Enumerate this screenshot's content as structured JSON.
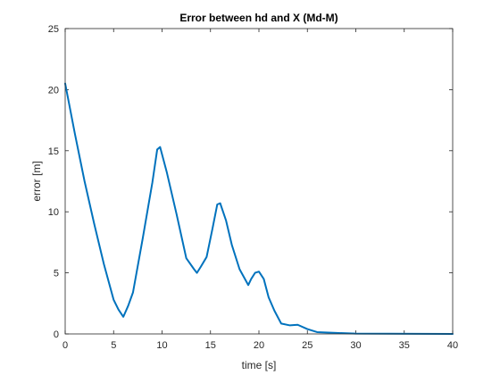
{
  "chart_data": {
    "type": "line",
    "title": "Error between hd and X (Md-M)",
    "xlabel": "time [s]",
    "ylabel": "error [m]",
    "xlim": [
      0,
      40
    ],
    "ylim": [
      0,
      25
    ],
    "xticks": [
      0,
      5,
      10,
      15,
      20,
      25,
      30,
      35,
      40
    ],
    "yticks": [
      0,
      5,
      10,
      15,
      20,
      25
    ],
    "grid": false,
    "series": [
      {
        "color": "#0072bd",
        "x": [
          0,
          1,
          2,
          3,
          4,
          5,
          5.5,
          6.0,
          6.5,
          7,
          8,
          9,
          9.5,
          9.8,
          10.5,
          11.5,
          12.5,
          13.3,
          13.6,
          14.0,
          14.6,
          15.2,
          15.7,
          16.0,
          16.6,
          17.2,
          18.0,
          18.9,
          19.2,
          19.6,
          20.0,
          20.5,
          21.0,
          21.6,
          22.3,
          23.2,
          24.0,
          25.0,
          26.0,
          28.0,
          30.0,
          40.0
        ],
        "y": [
          20.5,
          16.4,
          12.5,
          9.0,
          5.7,
          2.8,
          2.0,
          1.4,
          2.3,
          3.4,
          7.8,
          12.4,
          15.1,
          15.3,
          13.2,
          9.8,
          6.2,
          5.3,
          5.0,
          5.5,
          6.3,
          8.6,
          10.6,
          10.7,
          9.3,
          7.3,
          5.3,
          4.0,
          4.5,
          5.0,
          5.1,
          4.5,
          3.0,
          1.9,
          0.85,
          0.7,
          0.75,
          0.4,
          0.15,
          0.08,
          0.03,
          0.0
        ]
      }
    ]
  }
}
